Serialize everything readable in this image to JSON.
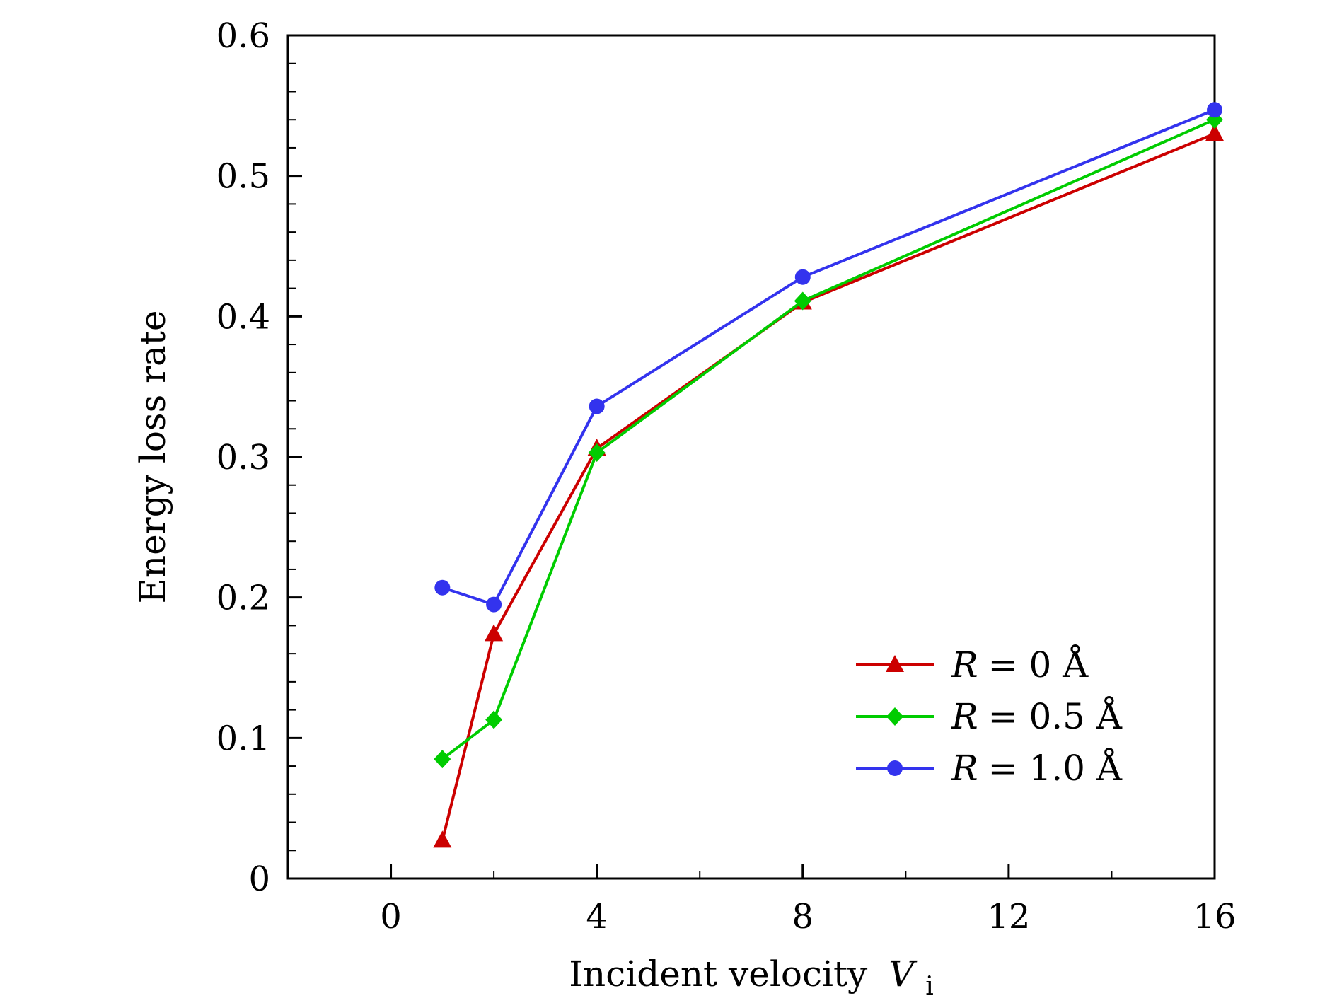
{
  "chart_data": {
    "type": "line",
    "title": "",
    "xlabel": "Incident velocity",
    "xlabel_symbol": "V",
    "xlabel_subscript": "i",
    "ylabel": "Energy loss rate",
    "xlim": [
      -2,
      16
    ],
    "ylim": [
      0,
      0.6
    ],
    "xticks": [
      0,
      4,
      8,
      12,
      16
    ],
    "xtick_labels": [
      "0",
      "4",
      "8",
      "12",
      "16"
    ],
    "yticks": [
      0,
      0.1,
      0.2,
      0.3,
      0.4,
      0.5,
      0.6
    ],
    "ytick_labels": [
      "0",
      "0.1",
      "0.2",
      "0.3",
      "0.4",
      "0.5",
      "0.6"
    ],
    "grid": false,
    "legend_position": "bottom-right",
    "x": [
      1,
      2,
      4,
      8,
      16
    ],
    "series": [
      {
        "name": "R = 0 Å",
        "legend_var": "R",
        "legend_eq": "= 0 Å",
        "color": "#cc0000",
        "marker": "triangle",
        "values": [
          0.027,
          0.174,
          0.306,
          0.41,
          0.53
        ]
      },
      {
        "name": "R = 0.5 Å",
        "legend_var": "R",
        "legend_eq": "= 0.5 Å",
        "color": "#00cc00",
        "marker": "diamond",
        "values": [
          0.085,
          0.113,
          0.303,
          0.411,
          0.54
        ]
      },
      {
        "name": "R = 1.0 Å",
        "legend_var": "R",
        "legend_eq": "= 1.0 Å",
        "color": "#3333ee",
        "marker": "circle",
        "values": [
          0.207,
          0.195,
          0.336,
          0.428,
          0.547
        ]
      }
    ]
  }
}
